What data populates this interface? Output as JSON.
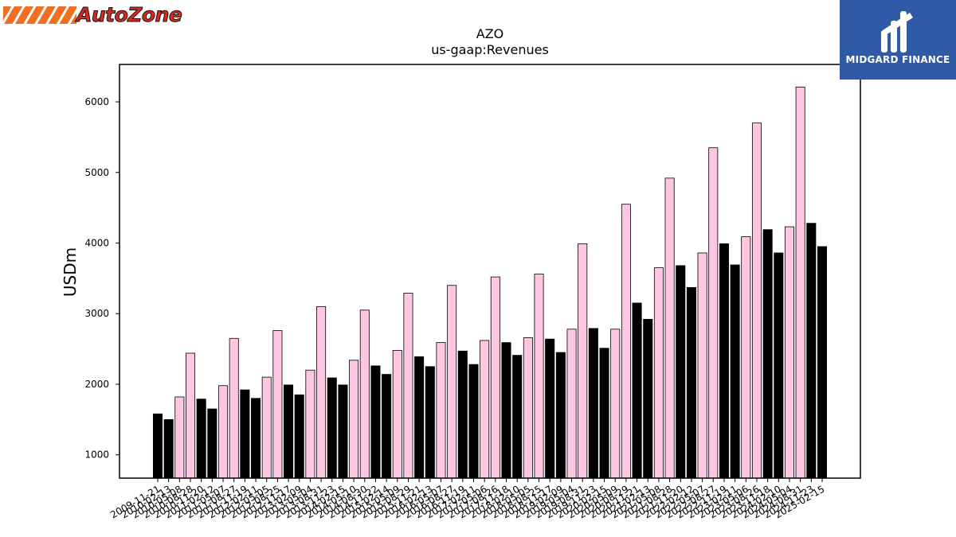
{
  "logos": {
    "left_text": "AutoZone",
    "right_text": "MIDGARD FINANCE"
  },
  "chart_data": {
    "type": "bar",
    "title": "AZO",
    "subtitle": "us-gaap:Revenues",
    "xlabel": "",
    "ylabel": "USDm",
    "ylim": [
      670,
      6530
    ],
    "yticks": [
      1000,
      2000,
      3000,
      4000,
      5000,
      6000
    ],
    "grid": false,
    "colors": {
      "annual": "#ffc6e1",
      "quarterly": "#000000",
      "edge": "#000000"
    },
    "categories": [
      "2009-11-21",
      "2010-02-13",
      "2010-05-08",
      "2010-08-28",
      "2010-11-20",
      "2011-02-12",
      "2011-05-07",
      "2011-08-27",
      "2011-11-19",
      "2012-02-11",
      "2012-05-05",
      "2012-08-25",
      "2012-11-17",
      "2013-02-09",
      "2013-05-04",
      "2013-08-31",
      "2013-11-23",
      "2014-02-15",
      "2014-05-10",
      "2014-08-30",
      "2014-11-22",
      "2015-02-14",
      "2015-05-09",
      "2015-08-29",
      "2015-11-21",
      "2016-02-13",
      "2016-05-07",
      "2016-08-27",
      "2016-11-19",
      "2017-02-11",
      "2017-05-06",
      "2017-08-26",
      "2017-11-18",
      "2018-02-10",
      "2018-05-05",
      "2018-08-25",
      "2018-11-17",
      "2019-02-09",
      "2019-05-04",
      "2019-08-31",
      "2019-11-23",
      "2020-02-15",
      "2020-05-09",
      "2020-08-29",
      "2020-11-21",
      "2021-02-13",
      "2021-05-08",
      "2021-08-28",
      "2021-11-20",
      "2022-02-12",
      "2022-05-07",
      "2022-08-27",
      "2022-11-19",
      "2023-02-11",
      "2023-05-06",
      "2023-08-26",
      "2023-11-18",
      "2024-02-10",
      "2024-05-04",
      "2024-08-31",
      "2024-11-23",
      "2025-02-15"
    ],
    "values": [
      1580,
      1500,
      1820,
      2440,
      1790,
      1650,
      1980,
      2650,
      1920,
      1800,
      2100,
      2760,
      1990,
      1850,
      2200,
      3100,
      2090,
      1990,
      2340,
      3050,
      2260,
      2140,
      2480,
      3290,
      2390,
      2250,
      2590,
      3400,
      2470,
      2280,
      2620,
      3520,
      2590,
      2410,
      2660,
      3560,
      2640,
      2450,
      2780,
      3990,
      2790,
      2510,
      2780,
      4550,
      3150,
      2920,
      3650,
      4920,
      3680,
      3370,
      3860,
      5350,
      3990,
      3690,
      4090,
      5700,
      4190,
      3860,
      4230,
      6210,
      4280,
      3950
    ],
    "bar_kinds": [
      "q",
      "q",
      "a",
      "a",
      "q",
      "q",
      "a",
      "a",
      "q",
      "q",
      "a",
      "a",
      "q",
      "q",
      "a",
      "a",
      "q",
      "q",
      "a",
      "a",
      "q",
      "q",
      "a",
      "a",
      "q",
      "q",
      "a",
      "a",
      "q",
      "q",
      "a",
      "a",
      "q",
      "q",
      "a",
      "a",
      "q",
      "q",
      "a",
      "a",
      "q",
      "q",
      "a",
      "a",
      "q",
      "q",
      "a",
      "a",
      "q",
      "q",
      "a",
      "a",
      "q",
      "q",
      "a",
      "a",
      "q",
      "q",
      "a",
      "a",
      "q",
      "q"
    ]
  }
}
